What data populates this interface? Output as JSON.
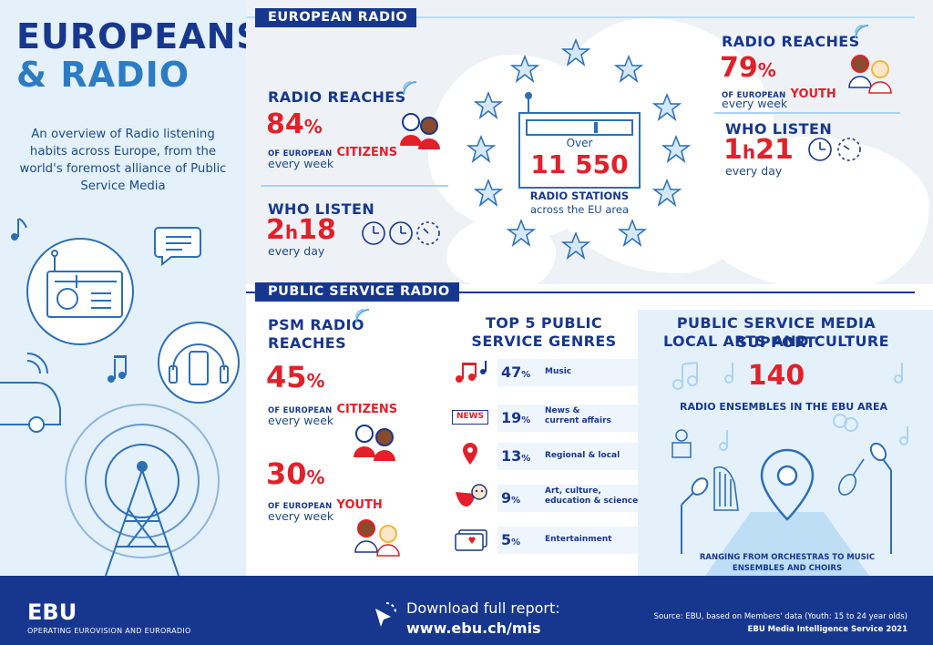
{
  "header": {
    "title_line1": "EUROPEANS",
    "title_line2": "& RADIO",
    "intro": "An overview of Radio listening habits across Europe, from the world's foremost alliance of Public Service Media"
  },
  "european_radio": {
    "section_label": "EUROPEAN RADIO",
    "citizens": {
      "heading": "RADIO REACHES",
      "percent_value": "84",
      "percent_sign": "%",
      "of_label": "OF EUROPEAN",
      "group": "CITIZENS",
      "frequency": "every week"
    },
    "citizens_listen": {
      "heading": "WHO LISTEN",
      "hours": "2",
      "h": "h",
      "minutes": "18",
      "frequency": "every day"
    },
    "stations": {
      "over": "Over",
      "count": "11 550",
      "label": "RADIO STATIONS",
      "sub": "across the EU area"
    },
    "youth": {
      "heading": "RADIO REACHES",
      "percent_value": "79",
      "percent_sign": "%",
      "of_label": "OF EUROPEAN",
      "group": "YOUTH",
      "frequency": "every week"
    },
    "youth_listen": {
      "heading": "WHO LISTEN",
      "hours": "1",
      "h": "h",
      "minutes": "21",
      "frequency": "every day"
    }
  },
  "public_service_radio": {
    "section_label": "PUBLIC SERVICE RADIO",
    "psm_heading_line1": "PSM RADIO",
    "psm_heading_line2": "REACHES",
    "citizens": {
      "percent_value": "45",
      "percent_sign": "%",
      "of_label": "OF EUROPEAN",
      "group": "CITIZENS",
      "frequency": "every week"
    },
    "youth": {
      "percent_value": "30",
      "percent_sign": "%",
      "of_label": "OF EUROPEAN",
      "group": "YOUTH",
      "frequency": "every week"
    },
    "genres_heading_line1": "TOP 5 PUBLIC",
    "genres_heading_line2": "SERVICE GENRES",
    "genres": [
      {
        "value": "47",
        "unit": "%",
        "label_line1": "Music",
        "label_line2": "",
        "icon": "music-notes-icon"
      },
      {
        "value": "19",
        "unit": "%",
        "label_line1": "News &",
        "label_line2": "current affairs",
        "icon": "news-icon",
        "icon_text": "NEWS"
      },
      {
        "value": "13",
        "unit": "%",
        "label_line1": "Regional & local",
        "label_line2": "",
        "icon": "map-pin-icon"
      },
      {
        "value": "9",
        "unit": "%",
        "label_line1": "Art, culture,",
        "label_line2": "education & science",
        "icon": "theater-masks-icon"
      },
      {
        "value": "5",
        "unit": "%",
        "label_line1": "Entertainment",
        "label_line2": "",
        "icon": "tickets-icon"
      }
    ],
    "arts": {
      "heading_line1": "PUBLIC SERVICE MEDIA SUPPORT",
      "heading_line2": "LOCAL ARTS AND CULTURE",
      "count": "140",
      "label": "RADIO ENSEMBLES IN THE EBU AREA",
      "footnote_line1": "RANGING FROM ORCHESTRAS TO MUSIC",
      "footnote_line2": "ENSEMBLES AND CHOIRS"
    }
  },
  "footer": {
    "logo": "EBU",
    "tagline": "OPERATING EUROVISION AND EURORADIO",
    "download_label": "Download full report:",
    "url": "www.ebu.ch/mis",
    "source": "Source: EBU, based on Members' data (Youth: 15 to 24 year olds)",
    "credit": "EBU Media Intelligence Service 2021"
  },
  "colors": {
    "navy": "#17378f",
    "red": "#e2202a",
    "light_blue": "#e4f1fb",
    "accent_blue": "#2c6fb7"
  }
}
